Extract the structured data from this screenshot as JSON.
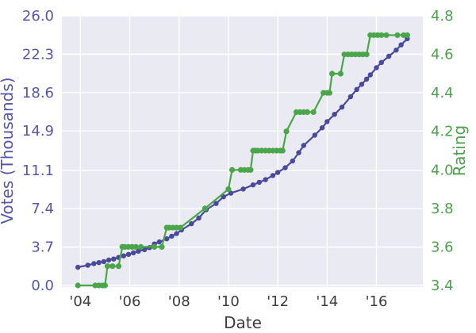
{
  "figure": {
    "background": "#ffffff",
    "plot_background": "#eaeaf2",
    "grid_color": "#ffffff"
  },
  "chart_data": {
    "type": "line",
    "title": "",
    "legend": false,
    "grid": true,
    "xlim": [
      2003.25,
      2017.88
    ],
    "x_axis": {
      "label": "Date",
      "color": "#3d3d3d",
      "ticks": [
        {
          "value": 2004,
          "label": "'04"
        },
        {
          "value": 2006,
          "label": "'06"
        },
        {
          "value": 2008,
          "label": "'08"
        },
        {
          "value": 2010,
          "label": "'10"
        },
        {
          "value": 2012,
          "label": "'12"
        },
        {
          "value": 2014,
          "label": "'14"
        },
        {
          "value": 2016,
          "label": "'16"
        }
      ]
    },
    "left_axis": {
      "label": "Votes (Thousands)",
      "color": "#5657a9",
      "ylim": [
        0,
        26
      ],
      "ticks": [
        {
          "value": 0.0,
          "label": "0.0"
        },
        {
          "value": 3.7,
          "label": "3.7"
        },
        {
          "value": 7.4,
          "label": "7.4"
        },
        {
          "value": 11.1,
          "label": "11.1"
        },
        {
          "value": 14.9,
          "label": "14.9"
        },
        {
          "value": 18.6,
          "label": "18.6"
        },
        {
          "value": 22.3,
          "label": "22.3"
        },
        {
          "value": 26.0,
          "label": "26.0"
        }
      ]
    },
    "right_axis": {
      "label": "Rating",
      "color": "#4da04d",
      "ylim": [
        3.4,
        4.8
      ],
      "ticks": [
        {
          "value": 3.4,
          "label": "3.4"
        },
        {
          "value": 3.6,
          "label": "3.6"
        },
        {
          "value": 3.8,
          "label": "3.8"
        },
        {
          "value": 4.0,
          "label": "4.0"
        },
        {
          "value": 4.2,
          "label": "4.2"
        },
        {
          "value": 4.4,
          "label": "4.4"
        },
        {
          "value": 4.6,
          "label": "4.6"
        },
        {
          "value": 4.8,
          "label": "4.8"
        }
      ]
    },
    "series": [
      {
        "name": "Votes (Thousands)",
        "axis": "left",
        "color": "#4a4a9c",
        "marker_radius": 3.2,
        "line_width": 2.2,
        "points": [
          [
            2003.9,
            1.75
          ],
          [
            2004.3,
            1.95
          ],
          [
            2004.55,
            2.1
          ],
          [
            2004.75,
            2.2
          ],
          [
            2004.95,
            2.3
          ],
          [
            2005.15,
            2.45
          ],
          [
            2005.35,
            2.55
          ],
          [
            2005.55,
            2.7
          ],
          [
            2005.75,
            2.85
          ],
          [
            2005.95,
            3.0
          ],
          [
            2006.15,
            3.15
          ],
          [
            2006.35,
            3.3
          ],
          [
            2006.6,
            3.45
          ],
          [
            2006.8,
            3.65
          ],
          [
            2007.0,
            4.0
          ],
          [
            2007.2,
            4.2
          ],
          [
            2007.5,
            4.5
          ],
          [
            2007.7,
            4.75
          ],
          [
            2007.9,
            5.0
          ],
          [
            2008.1,
            5.35
          ],
          [
            2008.5,
            5.95
          ],
          [
            2008.8,
            6.5
          ],
          [
            2009.1,
            7.3
          ],
          [
            2009.5,
            7.9
          ],
          [
            2009.8,
            8.55
          ],
          [
            2010.1,
            8.9
          ],
          [
            2010.6,
            9.3
          ],
          [
            2011.0,
            9.7
          ],
          [
            2011.25,
            9.95
          ],
          [
            2011.5,
            10.2
          ],
          [
            2011.8,
            10.6
          ],
          [
            2012.0,
            10.9
          ],
          [
            2012.3,
            11.35
          ],
          [
            2012.6,
            12.0
          ],
          [
            2012.85,
            12.8
          ],
          [
            2013.05,
            13.5
          ],
          [
            2013.5,
            14.5
          ],
          [
            2013.8,
            15.2
          ],
          [
            2014.0,
            15.8
          ],
          [
            2014.3,
            16.5
          ],
          [
            2014.6,
            17.2
          ],
          [
            2014.95,
            18.2
          ],
          [
            2015.2,
            18.9
          ],
          [
            2015.4,
            19.4
          ],
          [
            2015.6,
            19.9
          ],
          [
            2015.75,
            20.3
          ],
          [
            2016.0,
            21.0
          ],
          [
            2016.2,
            21.5
          ],
          [
            2016.5,
            22.1
          ],
          [
            2016.8,
            22.7
          ],
          [
            2017.0,
            23.2
          ],
          [
            2017.25,
            23.8
          ]
        ]
      },
      {
        "name": "Rating",
        "axis": "right",
        "color": "#4ba64b",
        "marker_radius": 3.6,
        "line_width": 2.2,
        "points": [
          [
            2003.9,
            3.4
          ],
          [
            2004.6,
            3.4
          ],
          [
            2004.75,
            3.4
          ],
          [
            2004.9,
            3.4
          ],
          [
            2005.0,
            3.4
          ],
          [
            2005.1,
            3.5
          ],
          [
            2005.3,
            3.5
          ],
          [
            2005.55,
            3.5
          ],
          [
            2005.7,
            3.6
          ],
          [
            2005.8,
            3.6
          ],
          [
            2005.95,
            3.6
          ],
          [
            2006.1,
            3.6
          ],
          [
            2006.25,
            3.6
          ],
          [
            2006.45,
            3.6
          ],
          [
            2007.0,
            3.6
          ],
          [
            2007.3,
            3.6
          ],
          [
            2007.5,
            3.7
          ],
          [
            2007.6,
            3.7
          ],
          [
            2007.75,
            3.7
          ],
          [
            2007.9,
            3.7
          ],
          [
            2008.05,
            3.7
          ],
          [
            2009.05,
            3.8
          ],
          [
            2010.0,
            3.9
          ],
          [
            2010.15,
            4.0
          ],
          [
            2010.5,
            4.0
          ],
          [
            2010.65,
            4.0
          ],
          [
            2010.8,
            4.0
          ],
          [
            2010.9,
            4.0
          ],
          [
            2011.0,
            4.1
          ],
          [
            2011.1,
            4.1
          ],
          [
            2011.2,
            4.1
          ],
          [
            2011.35,
            4.1
          ],
          [
            2011.5,
            4.1
          ],
          [
            2011.65,
            4.1
          ],
          [
            2011.8,
            4.1
          ],
          [
            2011.95,
            4.1
          ],
          [
            2012.1,
            4.1
          ],
          [
            2012.2,
            4.1
          ],
          [
            2012.35,
            4.2
          ],
          [
            2012.75,
            4.3
          ],
          [
            2012.9,
            4.3
          ],
          [
            2013.05,
            4.3
          ],
          [
            2013.2,
            4.3
          ],
          [
            2013.45,
            4.3
          ],
          [
            2013.85,
            4.4
          ],
          [
            2014.0,
            4.4
          ],
          [
            2014.1,
            4.4
          ],
          [
            2014.2,
            4.5
          ],
          [
            2014.55,
            4.5
          ],
          [
            2014.7,
            4.6
          ],
          [
            2014.85,
            4.6
          ],
          [
            2015.0,
            4.6
          ],
          [
            2015.15,
            4.6
          ],
          [
            2015.3,
            4.6
          ],
          [
            2015.45,
            4.6
          ],
          [
            2015.6,
            4.6
          ],
          [
            2015.75,
            4.7
          ],
          [
            2015.9,
            4.7
          ],
          [
            2016.05,
            4.7
          ],
          [
            2016.2,
            4.7
          ],
          [
            2016.4,
            4.7
          ],
          [
            2016.85,
            4.7
          ],
          [
            2017.1,
            4.7
          ],
          [
            2017.25,
            4.7
          ]
        ]
      }
    ]
  }
}
